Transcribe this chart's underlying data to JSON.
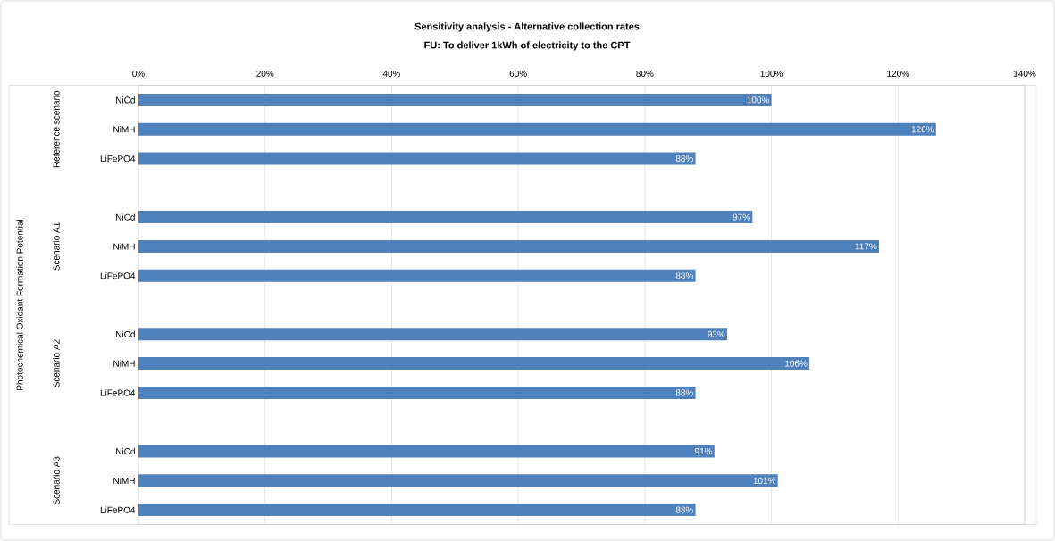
{
  "chart_data": {
    "type": "bar",
    "orientation": "horizontal",
    "title": "Sensitivity analysis - Alternative collection rates",
    "subtitle": "FU: To deliver 1kWh of electricity to the CPT",
    "categories": [
      "NiCd",
      "NiMH",
      "LiFePO4",
      null,
      "NiCd",
      "NiMH",
      "LiFePO4",
      null,
      "NiCd",
      "NiMH",
      "LiFePO4",
      null,
      "NiCd",
      "NiMH",
      "LiFePO4"
    ],
    "values": [
      100,
      126,
      88,
      null,
      97,
      117,
      88,
      null,
      93,
      106,
      88,
      null,
      91,
      101,
      88
    ],
    "value_labels": [
      "100%",
      "126%",
      "88%",
      null,
      "97%",
      "117%",
      "88%",
      null,
      "93%",
      "106%",
      "88%",
      null,
      "91%",
      "101%",
      "88%"
    ],
    "color": "#4f81bd",
    "xlim": [
      0,
      140
    ],
    "xticks": [
      {
        "value": 0,
        "label": "0%"
      },
      {
        "value": 20,
        "label": "20%"
      },
      {
        "value": 40,
        "label": "40%"
      },
      {
        "value": 60,
        "label": "60%"
      },
      {
        "value": 80,
        "label": "80%"
      },
      {
        "value": 100,
        "label": "100%"
      },
      {
        "value": 120,
        "label": "120%"
      },
      {
        "value": 140,
        "label": "140%"
      }
    ],
    "grid": "x",
    "annotations": [
      "Photochemical Oxidant Formation Potential",
      "Reference scenario",
      "Scenario A1",
      "Scenario A2",
      "Scenario A3"
    ]
  }
}
